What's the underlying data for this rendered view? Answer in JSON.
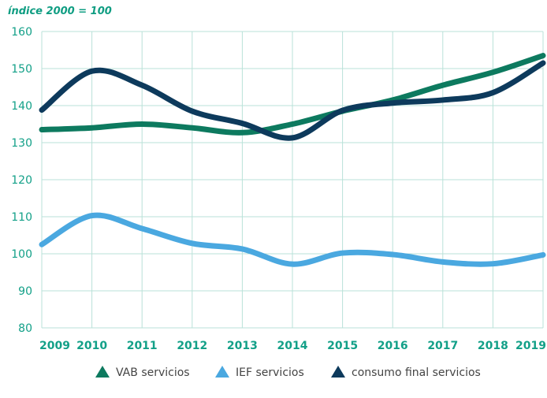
{
  "chart_data": {
    "type": "line",
    "title": "",
    "unit_label": "índice 2000 = 100",
    "xlabel": "",
    "ylabel": "",
    "x": [
      "2009",
      "2010",
      "2011",
      "2012",
      "2013",
      "2014",
      "2015",
      "2016",
      "2017",
      "2018",
      "2019"
    ],
    "ylim": [
      80,
      160
    ],
    "yticks": [
      "80",
      "90",
      "100",
      "110",
      "120",
      "130",
      "140",
      "150",
      "160"
    ],
    "grid": true,
    "legend_position": "bottom-center",
    "series": [
      {
        "name": "VAB servicios",
        "color": "#0d7a5f",
        "values": [
          133.5,
          134,
          135,
          134,
          132.7,
          135,
          138.5,
          141.5,
          145.5,
          149,
          153.5
        ]
      },
      {
        "name": "IEF servicios",
        "color": "#4aa8e0",
        "values": [
          102.5,
          110.3,
          106.8,
          102.8,
          101.3,
          97.2,
          100.2,
          99.8,
          97.8,
          97.3,
          99.7
        ]
      },
      {
        "name": "consumo final servicios",
        "color": "#0d3a5c",
        "values": [
          138.8,
          149.3,
          145.5,
          138.5,
          135.2,
          131.3,
          138.7,
          140.7,
          141.5,
          143.5,
          151.5
        ]
      }
    ]
  }
}
